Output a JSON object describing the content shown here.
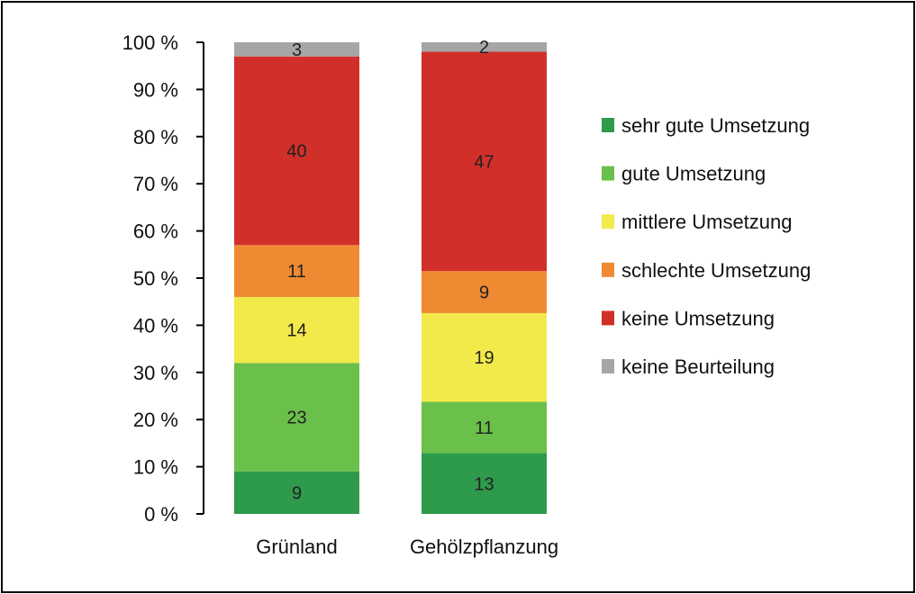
{
  "chart_data": {
    "type": "bar",
    "stacked": true,
    "normalized_percent": true,
    "categories": [
      "Grünland",
      "Gehölzpflanzung"
    ],
    "series": [
      {
        "name": "sehr gute Umsetzung",
        "color": "#2e9a4b",
        "values": [
          9,
          13
        ]
      },
      {
        "name": "gute Umsetzung",
        "color": "#6ac04a",
        "values": [
          23,
          11
        ]
      },
      {
        "name": "mittlere Umsetzung",
        "color": "#f2e94a",
        "values": [
          14,
          19
        ]
      },
      {
        "name": "schlechte Umsetzung",
        "color": "#ef8a33",
        "values": [
          11,
          9
        ]
      },
      {
        "name": "keine Umsetzung",
        "color": "#d12f2a",
        "values": [
          40,
          47
        ]
      },
      {
        "name": "keine Beurteilung",
        "color": "#a6a6a6",
        "values": [
          3,
          2
        ]
      }
    ],
    "ylim": [
      0,
      100
    ],
    "yticks": [
      "0 %",
      "10 %",
      "20 %",
      "30 %",
      "40 %",
      "50 %",
      "60 %",
      "70 %",
      "80 %",
      "90 %",
      "100 %"
    ],
    "legend_position": "right",
    "grid": false,
    "data_labels": true
  }
}
